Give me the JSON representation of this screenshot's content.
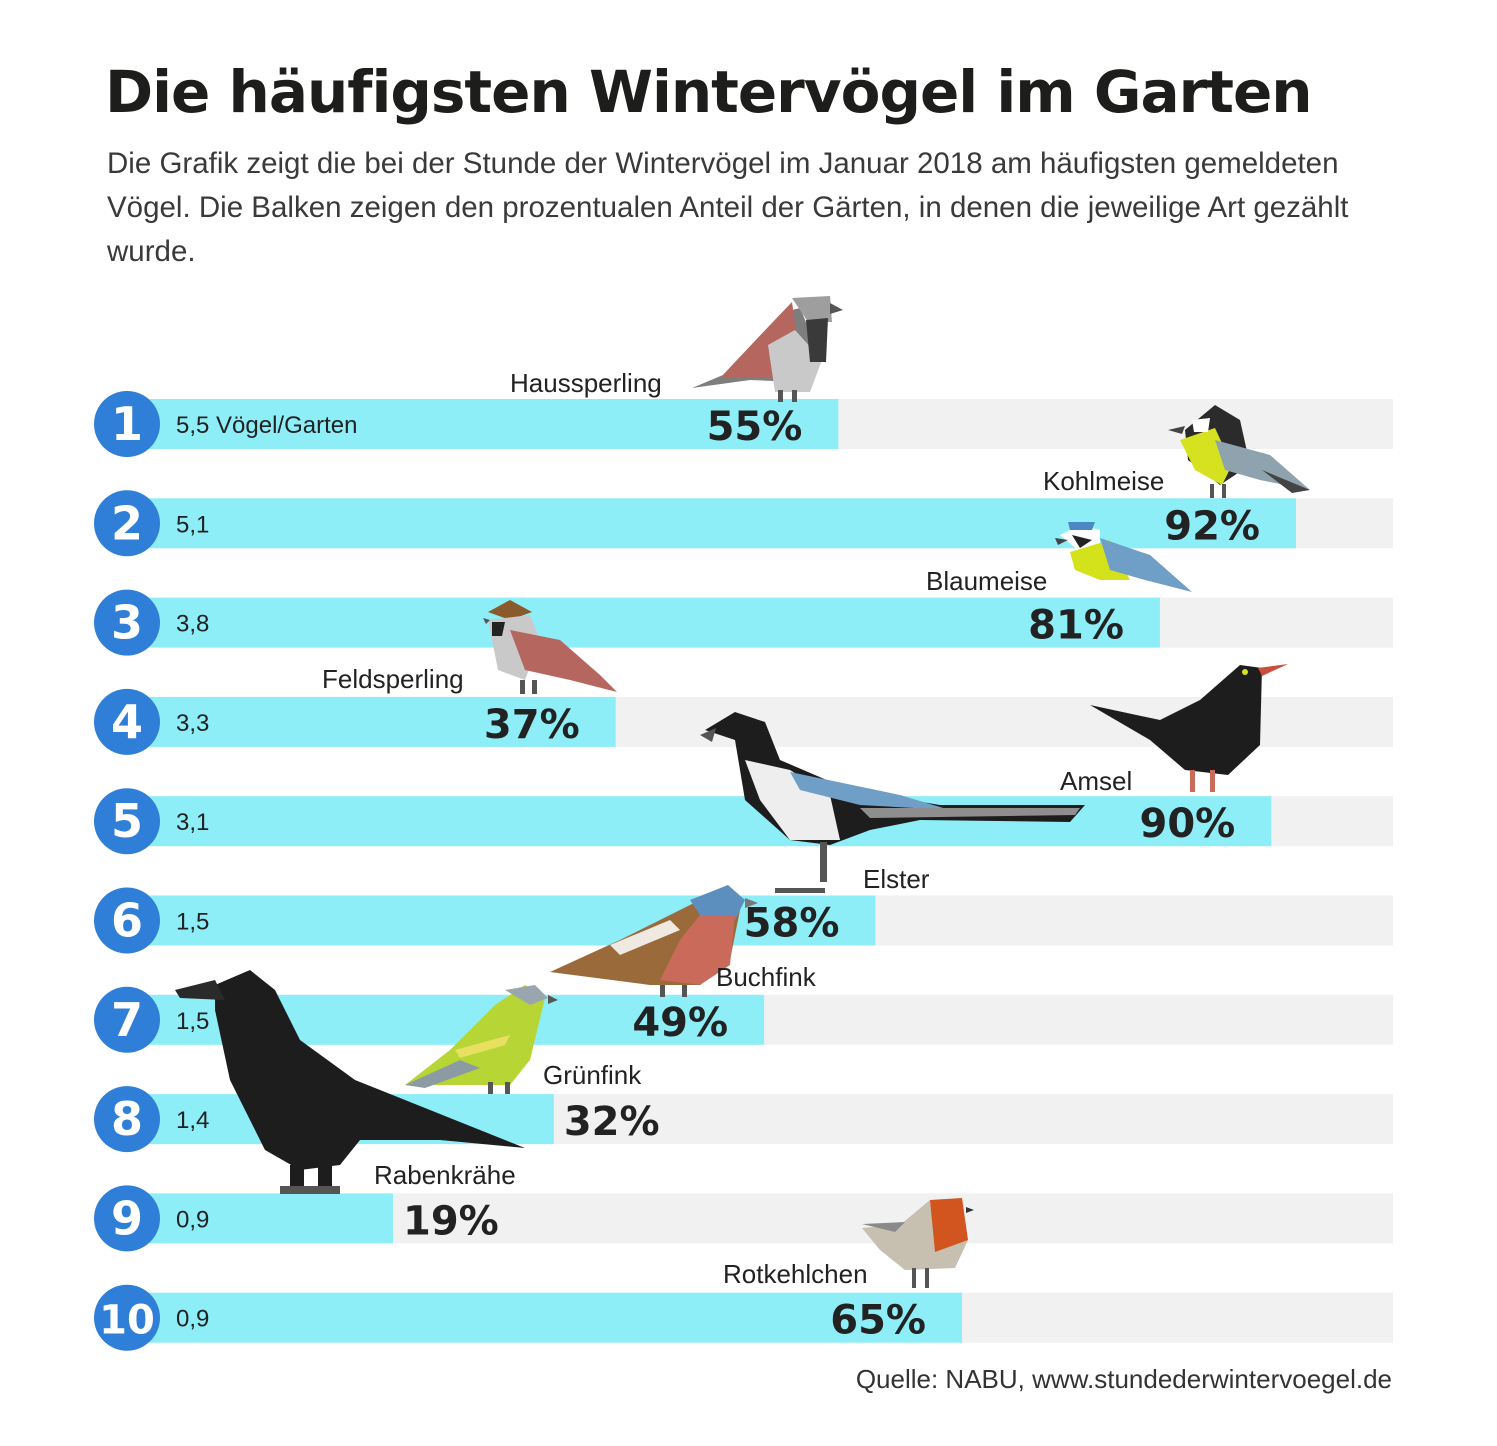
{
  "title": "Die häufigsten Wintervögel im Garten",
  "subtitle": "Die Grafik zeigt die bei der Stunde der Wintervögel im Januar 2018 am häufigsten gemeldeten Vögel. Die Balken zeigen den prozentualen Anteil der Gärten, in denen die jeweilige Art gezählt wurde.",
  "source": "Quelle: NABU, www.stundederwintervoegel.de",
  "colors": {
    "bar": "#8eeef8",
    "track": "#f1f1f1",
    "rank_circle": "#2f7fd8",
    "pct_text": "#222222"
  },
  "chart_data": {
    "type": "bar",
    "orientation": "horizontal",
    "xlim": [
      0,
      100
    ],
    "unit": "%",
    "categories": [
      "Haussperling",
      "Kohlmeise",
      "Blaumeise",
      "Feldsperling",
      "Amsel",
      "Elster",
      "Buchfink",
      "Grünfink",
      "Rabenkrähe",
      "Rotkehlchen"
    ],
    "ranks": [
      "1",
      "2",
      "3",
      "4",
      "5",
      "6",
      "7",
      "8",
      "9",
      "10"
    ],
    "values": [
      55,
      92,
      81,
      37,
      90,
      58,
      49,
      32,
      19,
      65
    ],
    "value_labels": [
      "55%",
      "92%",
      "81%",
      "37%",
      "90%",
      "58%",
      "49%",
      "32%",
      "19%",
      "65%"
    ],
    "birds_per_garden": [
      "5,5 Vögel/Garten",
      "5,1",
      "3,8",
      "3,3",
      "3,1",
      "1,5",
      "1,5",
      "1,4",
      "0,9",
      "0,9"
    ],
    "icons": [
      "house-sparrow-icon",
      "great-tit-icon",
      "blue-tit-icon",
      "tree-sparrow-icon",
      "blackbird-icon",
      "magpie-icon",
      "chaffinch-icon",
      "greenfinch-icon",
      "carrion-crow-icon",
      "robin-icon"
    ]
  }
}
